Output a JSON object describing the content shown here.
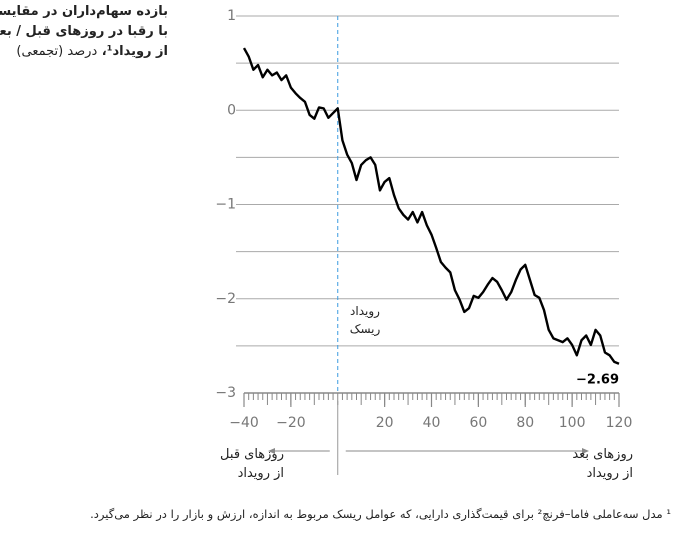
{
  "chart_data": {
    "type": "line",
    "title_lines": [
      "بازده سهام‌داران در مقایسه",
      "با رقبا در روزهای قبل / بعد",
      "از رویداد¹،"
    ],
    "subtitle": "درصد (تجمعی)",
    "x": [
      -40,
      -38,
      -36,
      -34,
      -32,
      -30,
      -28,
      -26,
      -24,
      -22,
      -20,
      -18,
      -16,
      -14,
      -12,
      -10,
      -8,
      -6,
      -4,
      -2,
      0,
      2,
      4,
      6,
      8,
      10,
      12,
      14,
      16,
      18,
      20,
      22,
      24,
      26,
      28,
      30,
      32,
      34,
      36,
      38,
      40,
      42,
      44,
      46,
      48,
      50,
      52,
      54,
      56,
      58,
      60,
      62,
      64,
      66,
      68,
      70,
      72,
      74,
      76,
      78,
      80,
      82,
      84,
      86,
      88,
      90,
      92,
      94,
      96,
      98,
      100,
      102,
      104,
      106,
      108,
      110,
      112,
      114,
      116,
      118,
      120
    ],
    "series": [
      {
        "color": "#000000",
        "values": [
          0.66,
          0.57,
          0.43,
          0.48,
          0.35,
          0.43,
          0.37,
          0.4,
          0.32,
          0.37,
          0.24,
          0.18,
          0.13,
          0.09,
          -0.05,
          -0.09,
          0.03,
          0.02,
          -0.08,
          -0.03,
          0.02,
          -0.32,
          -0.47,
          -0.56,
          -0.74,
          -0.58,
          -0.53,
          -0.5,
          -0.58,
          -0.85,
          -0.76,
          -0.72,
          -0.9,
          -1.04,
          -1.11,
          -1.16,
          -1.08,
          -1.19,
          -1.08,
          -1.22,
          -1.32,
          -1.46,
          -1.61,
          -1.67,
          -1.72,
          -1.91,
          -2.01,
          -2.14,
          -2.1,
          -1.97,
          -1.99,
          -1.93,
          -1.85,
          -1.78,
          -1.82,
          -1.91,
          -2.01,
          -1.93,
          -1.8,
          -1.69,
          -1.64,
          -1.8,
          -1.96,
          -1.99,
          -2.12,
          -2.33,
          -2.42,
          -2.44,
          -2.46,
          -2.42,
          -2.49,
          -2.6,
          -2.44,
          -2.39,
          -2.49,
          -2.33,
          -2.39,
          -2.57,
          -2.6,
          -2.67,
          -2.69
        ]
      }
    ],
    "end_value_label": "−2.69",
    "xlim": [
      -40,
      120
    ],
    "xticks": [
      {
        "value": -40,
        "label": "−40"
      },
      {
        "value": -20,
        "label": "−20"
      },
      20,
      40,
      60,
      80,
      100,
      120
    ],
    "ylim": [
      -3,
      1
    ],
    "yticks": [
      {
        "value": -3,
        "label": "−3"
      },
      {
        "value": -2,
        "label": "−2"
      },
      {
        "value": -1,
        "label": "−1"
      },
      0,
      1
    ],
    "grid_yticks": [
      -2.5,
      -1.5,
      -0.5,
      0.5
    ],
    "grid": true,
    "event_x": 0,
    "event_label_lines": [
      "رویداد",
      "ریسک"
    ],
    "before_label_lines": [
      "روزهای قبل",
      "از رویداد"
    ],
    "after_label_lines": [
      "روزهای بعد",
      "از رویداد"
    ],
    "footnote": "¹ مدل سه‌عاملی فاما–فرنچ² برای قیمت‌گذاری دارایی، که عوامل ریسک مربوط به اندازه، ارزش و بازار را در نظر می‌گیرد."
  }
}
